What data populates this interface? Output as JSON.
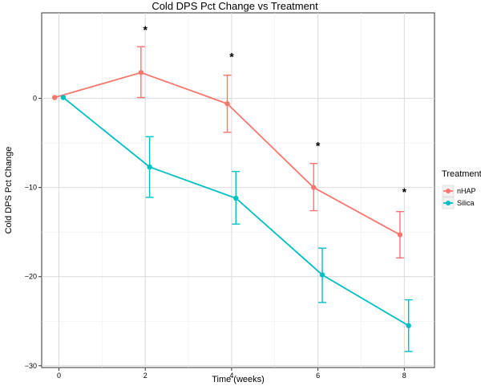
{
  "chart_data": {
    "type": "line",
    "title": "Cold DPS Pct Change vs Treatment",
    "xlabel": "Time (weeks)",
    "ylabel": "Cold DPS Pct Change",
    "xlim": [
      -0.4,
      8.7
    ],
    "ylim": [
      -30.2,
      9.6
    ],
    "x_ticks": [
      0,
      2,
      4,
      6,
      8
    ],
    "y_ticks": [
      0,
      -10,
      -20,
      -30
    ],
    "grid": true,
    "legend": {
      "title": "Treatment",
      "position": "right"
    },
    "series": [
      {
        "name": "nHAP",
        "color": "#F8766D",
        "x": [
          -0.1,
          1.9,
          3.9,
          5.9,
          7.9
        ],
        "y": [
          0.1,
          2.9,
          -0.6,
          -10.0,
          -15.3
        ],
        "err_low": [
          0.1,
          0.1,
          -3.8,
          -12.6,
          -17.9
        ],
        "err_high": [
          0.1,
          5.8,
          2.6,
          -7.3,
          -12.7
        ]
      },
      {
        "name": "Silica",
        "color": "#00BFC4",
        "x": [
          0.1,
          2.1,
          4.1,
          6.1,
          8.1
        ],
        "y": [
          0.1,
          -7.7,
          -11.2,
          -19.8,
          -25.5
        ],
        "err_low": [
          0.1,
          -11.1,
          -14.1,
          -22.9,
          -28.4
        ],
        "err_high": [
          0.1,
          -4.3,
          -8.2,
          -16.8,
          -22.6
        ]
      }
    ],
    "annotations": [
      {
        "text": "*",
        "x": 2,
        "y": 7.7
      },
      {
        "text": "*",
        "x": 4,
        "y": 4.7
      },
      {
        "text": "*",
        "x": 6,
        "y": -5.3
      },
      {
        "text": "*",
        "x": 8,
        "y": -10.5
      }
    ]
  }
}
